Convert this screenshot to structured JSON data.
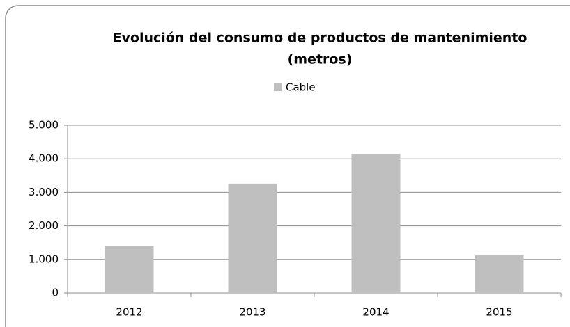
{
  "chart_data": {
    "type": "bar",
    "title": [
      "Evolución del consumo de productos de mantenimiento",
      "(metros)"
    ],
    "categories": [
      "2012",
      "2013",
      "2014",
      "2015"
    ],
    "series": [
      {
        "name": "Cable",
        "color": "#bfbfbf",
        "values": [
          1410,
          3260,
          4140,
          1120
        ]
      }
    ],
    "ylim": [
      0,
      5000
    ],
    "yticks": [
      0,
      {
        "value": 1000,
        "label": "1.000"
      },
      {
        "value": 2000,
        "label": "2.000"
      },
      {
        "value": 3000,
        "label": "3.000"
      },
      {
        "value": 4000,
        "label": "4.000"
      },
      {
        "value": 5000,
        "label": "5.000"
      }
    ],
    "grid": true,
    "legend": "top"
  }
}
